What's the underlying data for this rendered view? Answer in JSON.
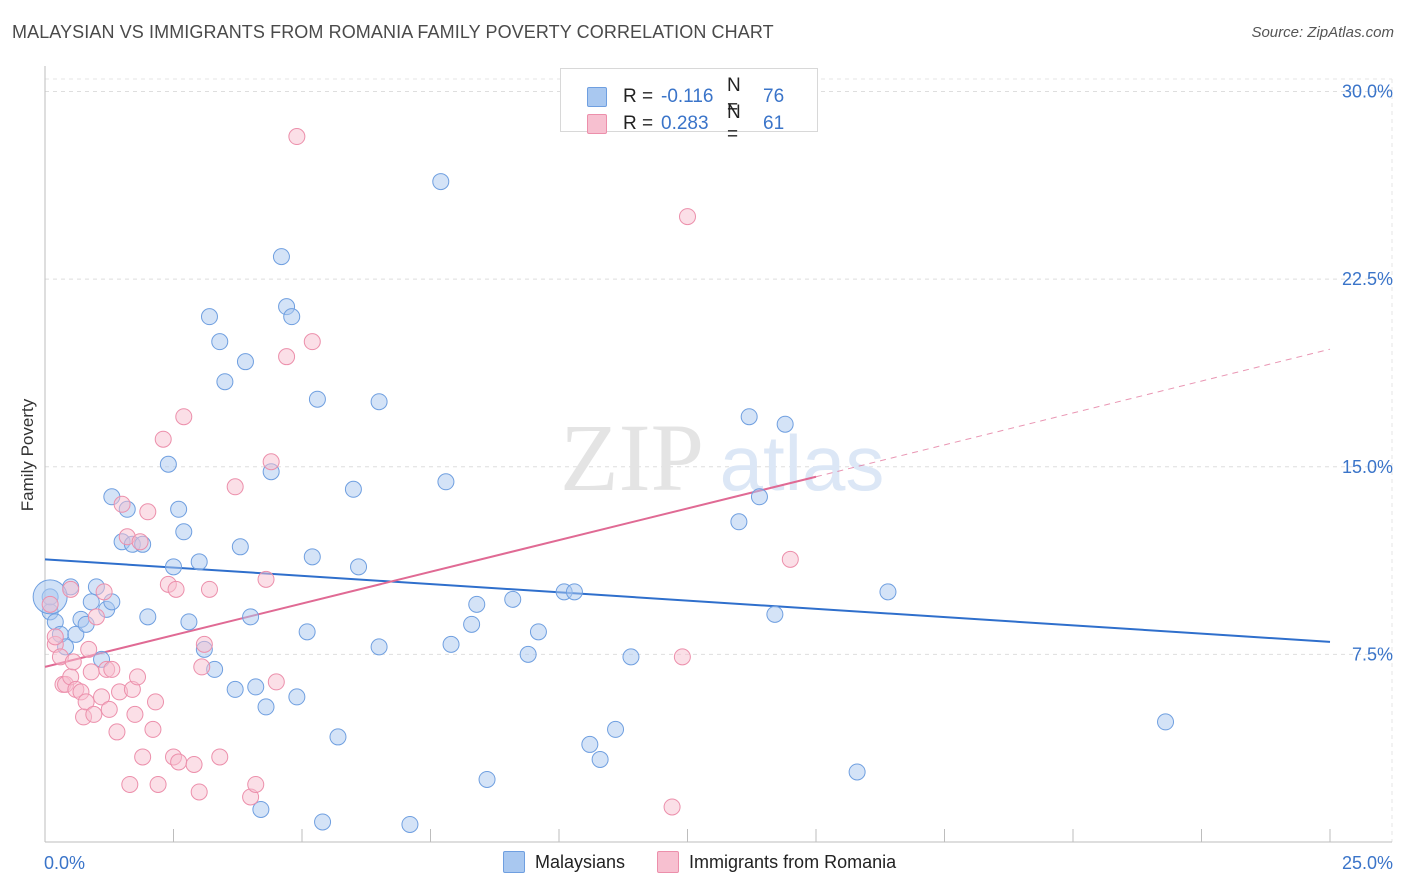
{
  "title": "MALAYSIAN VS IMMIGRANTS FROM ROMANIA FAMILY POVERTY CORRELATION CHART",
  "source": "Source: ZipAtlas.com",
  "watermark": {
    "zip": "ZIP",
    "atlas": "atlas"
  },
  "legend": {
    "rows": [
      {
        "r_label": "R =",
        "r_value": "-0.116",
        "n_label": "N =",
        "n_value": "76",
        "color": "#a9c8f0",
        "border": "#6f9fe0"
      },
      {
        "r_label": "R =",
        "r_value": "0.283",
        "n_label": "N =",
        "n_value": "61",
        "color": "#f7c0d0",
        "border": "#ec8fab"
      }
    ]
  },
  "bottom_legend": [
    {
      "label": "Malaysians",
      "color": "#a9c8f0",
      "border": "#6f9fe0"
    },
    {
      "label": "Immigrants from Romania",
      "color": "#f7c0d0",
      "border": "#ec8fab"
    }
  ],
  "chart_data": {
    "type": "scatter",
    "title": "MALAYSIAN VS IMMIGRANTS FROM ROMANIA FAMILY POVERTY CORRELATION CHART",
    "xlabel": "",
    "ylabel": "Family Poverty",
    "xlim": [
      0,
      25
    ],
    "ylim": [
      0,
      30.5
    ],
    "x_tick_labels": [
      "0.0%",
      "25.0%"
    ],
    "y_ticks": [
      7.5,
      15.0,
      22.5,
      30.0
    ],
    "y_tick_labels": [
      "7.5%",
      "15.0%",
      "22.5%",
      "30.0%"
    ],
    "grid": true,
    "series": [
      {
        "name": "Malaysians",
        "color": "#6f9fe0",
        "fill": "#a9c8f0",
        "trend": {
          "x": [
            0,
            25
          ],
          "y": [
            11.3,
            8.0
          ],
          "style": "solid",
          "color": "#2f6fcc"
        },
        "points": [
          [
            0.1,
            9.2
          ],
          [
            0.2,
            8.8
          ],
          [
            0.3,
            8.3
          ],
          [
            0.4,
            7.8
          ],
          [
            0.5,
            10.2
          ],
          [
            0.6,
            8.3
          ],
          [
            0.7,
            8.9
          ],
          [
            0.8,
            8.7
          ],
          [
            0.9,
            9.6
          ],
          [
            1.0,
            10.2
          ],
          [
            1.1,
            7.3
          ],
          [
            1.2,
            9.3
          ],
          [
            1.3,
            9.6
          ],
          [
            1.3,
            13.8
          ],
          [
            1.5,
            12.0
          ],
          [
            1.6,
            13.3
          ],
          [
            1.7,
            11.9
          ],
          [
            1.9,
            11.9
          ],
          [
            2.0,
            9.0
          ],
          [
            2.4,
            15.1
          ],
          [
            2.5,
            11.0
          ],
          [
            2.6,
            13.3
          ],
          [
            2.7,
            12.4
          ],
          [
            2.8,
            8.8
          ],
          [
            3.0,
            11.2
          ],
          [
            3.1,
            7.7
          ],
          [
            3.2,
            21.0
          ],
          [
            3.3,
            6.9
          ],
          [
            3.4,
            20.0
          ],
          [
            3.5,
            18.4
          ],
          [
            3.7,
            6.1
          ],
          [
            3.8,
            11.8
          ],
          [
            3.9,
            19.2
          ],
          [
            4.0,
            9.0
          ],
          [
            4.1,
            6.2
          ],
          [
            4.2,
            1.3
          ],
          [
            4.3,
            5.4
          ],
          [
            4.4,
            14.8
          ],
          [
            4.6,
            23.4
          ],
          [
            4.7,
            21.4
          ],
          [
            4.8,
            21.0
          ],
          [
            4.9,
            5.8
          ],
          [
            5.1,
            8.4
          ],
          [
            5.2,
            11.4
          ],
          [
            5.3,
            17.7
          ],
          [
            5.4,
            0.8
          ],
          [
            5.7,
            4.2
          ],
          [
            6.0,
            14.1
          ],
          [
            6.1,
            11.0
          ],
          [
            6.5,
            7.8
          ],
          [
            6.5,
            17.6
          ],
          [
            7.1,
            0.7
          ],
          [
            7.7,
            26.4
          ],
          [
            7.8,
            14.4
          ],
          [
            7.9,
            7.9
          ],
          [
            8.3,
            8.7
          ],
          [
            8.4,
            9.5
          ],
          [
            8.6,
            2.5
          ],
          [
            9.1,
            9.7
          ],
          [
            9.4,
            7.5
          ],
          [
            9.6,
            8.4
          ],
          [
            10.1,
            10.0
          ],
          [
            10.3,
            10.0
          ],
          [
            10.6,
            3.9
          ],
          [
            10.8,
            3.3
          ],
          [
            11.1,
            4.5
          ],
          [
            11.4,
            7.4
          ],
          [
            13.5,
            12.8
          ],
          [
            13.7,
            17.0
          ],
          [
            13.9,
            13.8
          ],
          [
            14.2,
            9.1
          ],
          [
            14.4,
            16.7
          ],
          [
            15.8,
            2.8
          ],
          [
            16.4,
            10.0
          ],
          [
            21.8,
            4.8
          ],
          [
            0.1,
            9.8
          ]
        ],
        "large_point": [
          0.1,
          9.8
        ]
      },
      {
        "name": "Immigrants from Romania",
        "color": "#ec8fab",
        "fill": "#f7c0d0",
        "trend": {
          "x": [
            0,
            15.0
          ],
          "y": [
            7.0,
            14.6
          ],
          "style": "solid",
          "color": "#e06a94",
          "extension": {
            "x": [
              15.0,
              25
            ],
            "y": [
              14.6,
              19.7
            ],
            "style": "dashed"
          }
        },
        "points": [
          [
            0.1,
            9.5
          ],
          [
            0.2,
            7.9
          ],
          [
            0.3,
            7.4
          ],
          [
            0.35,
            6.3
          ],
          [
            0.4,
            6.3
          ],
          [
            0.5,
            6.6
          ],
          [
            0.55,
            7.2
          ],
          [
            0.6,
            6.1
          ],
          [
            0.7,
            6.0
          ],
          [
            0.75,
            5.0
          ],
          [
            0.8,
            5.6
          ],
          [
            0.85,
            7.7
          ],
          [
            0.9,
            6.8
          ],
          [
            0.95,
            5.1
          ],
          [
            1.0,
            9.0
          ],
          [
            1.1,
            5.8
          ],
          [
            1.15,
            10.0
          ],
          [
            1.2,
            6.9
          ],
          [
            1.25,
            5.3
          ],
          [
            1.3,
            6.9
          ],
          [
            1.4,
            4.4
          ],
          [
            1.45,
            6.0
          ],
          [
            1.5,
            13.5
          ],
          [
            1.6,
            12.2
          ],
          [
            1.65,
            2.3
          ],
          [
            1.7,
            6.1
          ],
          [
            1.75,
            5.1
          ],
          [
            1.8,
            6.6
          ],
          [
            1.85,
            12.0
          ],
          [
            1.9,
            3.4
          ],
          [
            2.0,
            13.2
          ],
          [
            2.1,
            4.5
          ],
          [
            2.15,
            5.6
          ],
          [
            2.2,
            2.3
          ],
          [
            2.3,
            16.1
          ],
          [
            2.4,
            10.3
          ],
          [
            2.5,
            3.4
          ],
          [
            2.55,
            10.1
          ],
          [
            2.6,
            3.2
          ],
          [
            2.7,
            17.0
          ],
          [
            2.9,
            3.1
          ],
          [
            3.0,
            2.0
          ],
          [
            3.05,
            7.0
          ],
          [
            3.1,
            7.9
          ],
          [
            3.2,
            10.1
          ],
          [
            3.4,
            3.4
          ],
          [
            3.7,
            14.2
          ],
          [
            4.0,
            1.8
          ],
          [
            4.1,
            2.3
          ],
          [
            4.3,
            10.5
          ],
          [
            4.4,
            15.2
          ],
          [
            4.5,
            6.4
          ],
          [
            4.7,
            19.4
          ],
          [
            4.9,
            28.2
          ],
          [
            5.2,
            20.0
          ],
          [
            12.2,
            1.4
          ],
          [
            12.4,
            7.4
          ],
          [
            12.5,
            25.0
          ],
          [
            14.5,
            11.3
          ],
          [
            0.2,
            8.2
          ],
          [
            0.5,
            10.1
          ]
        ]
      }
    ]
  }
}
